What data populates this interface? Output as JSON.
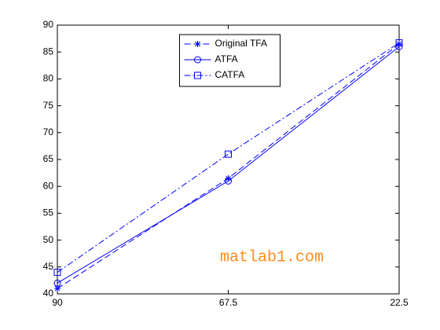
{
  "chart_data": {
    "type": "line",
    "categories": [
      "90",
      "67.5",
      "22.5"
    ],
    "series": [
      {
        "name": "Original TFA",
        "color": "#0000ff",
        "linestyle": "--",
        "marker": "*",
        "values": [
          41,
          61.5,
          86.5
        ]
      },
      {
        "name": "ATFA",
        "color": "#0000ff",
        "linestyle": "-",
        "marker": "o",
        "values": [
          42,
          61,
          86
        ]
      },
      {
        "name": "CATFA",
        "color": "#0000ff",
        "linestyle": "-.",
        "marker": "s",
        "values": [
          44,
          66,
          86.7
        ]
      }
    ],
    "ylim": [
      40,
      90
    ],
    "yticks": [
      40,
      45,
      50,
      55,
      60,
      65,
      70,
      75,
      80,
      85,
      90
    ],
    "grid": false,
    "legend": "north",
    "watermark": "matlab1.com",
    "watermark_color": "#ff8c1a"
  }
}
